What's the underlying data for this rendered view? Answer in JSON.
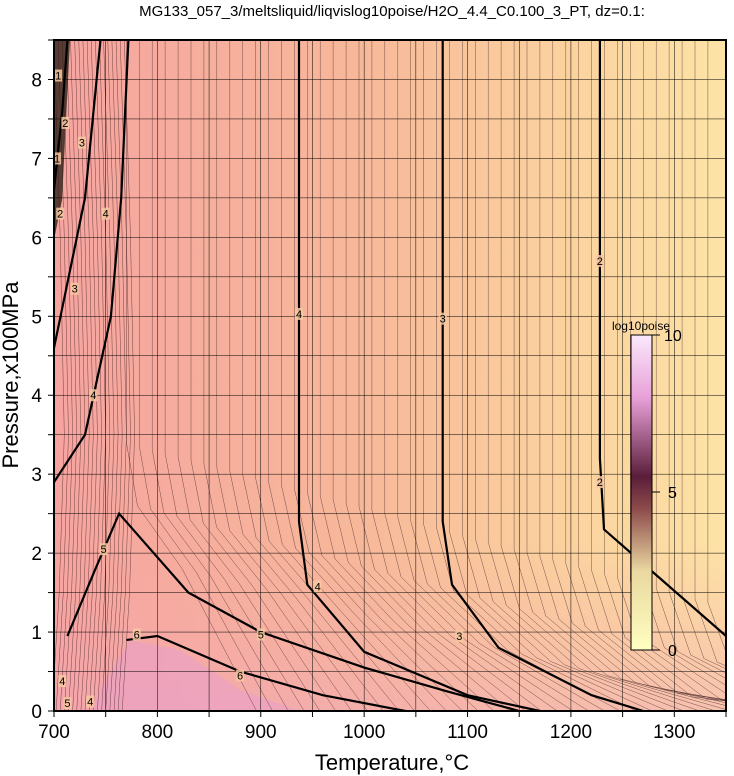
{
  "chart_data": {
    "type": "heatmap",
    "title": "MG133_057_3/meltsliquid/liqvislog10poise/H2O_4.4_C0.100_3_PT, dz=0.1:",
    "xlabel": "Temperature,°C",
    "ylabel": "Pressure,x100MPa",
    "xlim": [
      700,
      1350
    ],
    "ylim": [
      0,
      8.5
    ],
    "xticks": [
      "700",
      "800",
      "900",
      "1000",
      "1100",
      "1200",
      "1300"
    ],
    "yticks": [
      "0",
      "1",
      "2",
      "3",
      "4",
      "5",
      "6",
      "7",
      "8"
    ],
    "grid": true,
    "colorbar": {
      "title": "log10poise",
      "range": [
        0,
        10
      ],
      "ticks": [
        "0",
        "5",
        "10"
      ],
      "colors": [
        "#ffffc0",
        "#e9d8a0",
        "#8c4a4a",
        "#5a1e3a",
        "#e8a0d8",
        "#ffffff"
      ],
      "placement": "right-middle"
    },
    "contour_interval": 0.1,
    "labeled_contours": [
      {
        "level": "2",
        "points": [
          [
            1228,
            8.5
          ],
          [
            1228,
            3.2
          ],
          [
            1232,
            2.3
          ],
          [
            1350,
            0.95
          ]
        ]
      },
      {
        "level": "3",
        "points": [
          [
            1076,
            8.5
          ],
          [
            1076,
            2.4
          ],
          [
            1085,
            1.6
          ],
          [
            1130,
            0.8
          ],
          [
            1220,
            0.2
          ],
          [
            1270,
            0
          ]
        ]
      },
      {
        "level": "4",
        "points": [
          [
            937,
            8.5
          ],
          [
            937,
            2.4
          ],
          [
            945,
            1.6
          ],
          [
            1000,
            0.75
          ],
          [
            1100,
            0.2
          ],
          [
            1170,
            0
          ]
        ]
      },
      {
        "level": "5",
        "points": [
          [
            713,
            0.95
          ],
          [
            740,
            1.8
          ],
          [
            763,
            2.5
          ],
          [
            830,
            1.5
          ],
          [
            900,
            1.0
          ],
          [
            1000,
            0.55
          ],
          [
            1080,
            0.25
          ],
          [
            1150,
            0
          ]
        ]
      },
      {
        "level": "6",
        "points": [
          [
            770,
            0.9
          ],
          [
            800,
            0.95
          ],
          [
            880,
            0.5
          ],
          [
            960,
            0.2
          ],
          [
            1040,
            0
          ]
        ]
      },
      {
        "level": "4",
        "points": [
          [
            700,
            2.9
          ],
          [
            730,
            3.5
          ],
          [
            755,
            5.0
          ],
          [
            765,
            6.5
          ],
          [
            772,
            8.5
          ]
        ]
      },
      {
        "level": "3",
        "points": [
          [
            700,
            4.6
          ],
          [
            730,
            6.5
          ],
          [
            745,
            8.5
          ]
        ]
      },
      {
        "level": "2",
        "points": [
          [
            700,
            6.6
          ],
          [
            708,
            7.6
          ],
          [
            713,
            8.5
          ]
        ]
      }
    ],
    "contour_labels": [
      {
        "text": "2",
        "x": 1228,
        "y": 5.7
      },
      {
        "text": "2",
        "x": 1228,
        "y": 2.9
      },
      {
        "text": "3",
        "x": 1076,
        "y": 4.97
      },
      {
        "text": "3",
        "x": 1092,
        "y": 0.95
      },
      {
        "text": "4",
        "x": 937,
        "y": 5.03
      },
      {
        "text": "4",
        "x": 955,
        "y": 1.58
      },
      {
        "text": "4",
        "x": 750,
        "y": 6.3
      },
      {
        "text": "4",
        "x": 738,
        "y": 4.0
      },
      {
        "text": "5",
        "x": 748,
        "y": 2.05
      },
      {
        "text": "5",
        "x": 900,
        "y": 0.97
      },
      {
        "text": "6",
        "x": 780,
        "y": 0.97
      },
      {
        "text": "6",
        "x": 880,
        "y": 0.45
      },
      {
        "text": "3",
        "x": 727,
        "y": 7.2
      },
      {
        "text": "3",
        "x": 720,
        "y": 5.35
      },
      {
        "text": "2",
        "x": 711,
        "y": 7.45
      },
      {
        "text": "2",
        "x": 706,
        "y": 6.3
      },
      {
        "text": "1",
        "x": 704,
        "y": 8.05
      },
      {
        "text": "1",
        "x": 703,
        "y": 7.0
      },
      {
        "text": "4",
        "x": 708,
        "y": 0.38
      },
      {
        "text": "5",
        "x": 713,
        "y": 0.1
      },
      {
        "text": "4",
        "x": 735,
        "y": 0.12
      }
    ]
  }
}
